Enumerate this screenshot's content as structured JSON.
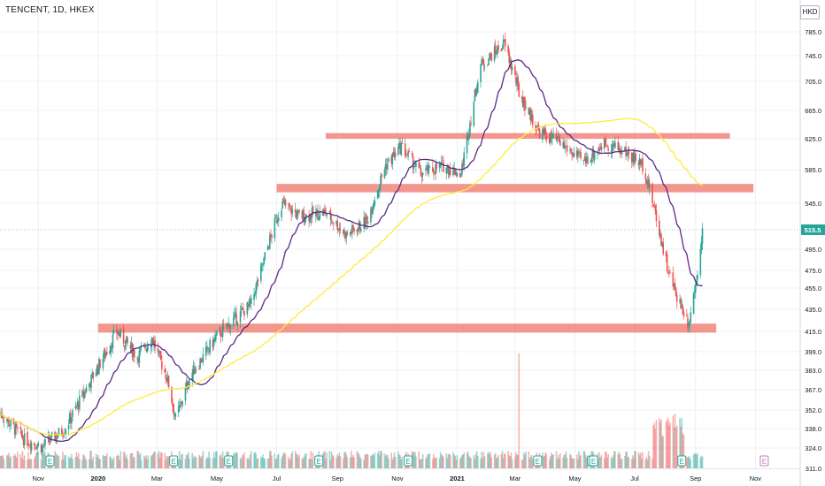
{
  "header": {
    "symbol": "TENCENT, 1D, HKEX",
    "currency": "HKD"
  },
  "chart_data": {
    "type": "candlestick",
    "title": "TENCENT, 1D, HKEX",
    "currency": "HKD",
    "last_price_label": "515.5",
    "ylim": [
      311.0,
      800.0
    ],
    "y_tick_labels": [
      "785.0",
      "745.0",
      "705.0",
      "665.0",
      "625.0",
      "585.0",
      "545.0",
      "515.5",
      "495.0",
      "475.0",
      "455.0",
      "435.0",
      "415.0",
      "399.0",
      "383.0",
      "367.0",
      "352.0",
      "338.0",
      "324.0",
      "311.0"
    ],
    "x_tick_labels": [
      "Nov",
      "2020",
      "Mar",
      "May",
      "Jul",
      "Sep",
      "Nov",
      "2021",
      "Mar",
      "May",
      "Jul",
      "Sep",
      "Nov"
    ],
    "price_anchors": [
      {
        "date": "2019-09-23",
        "price": 350
      },
      {
        "date": "2019-10-18",
        "price": 330
      },
      {
        "date": "2019-11-05",
        "price": 325
      },
      {
        "date": "2019-11-28",
        "price": 338
      },
      {
        "date": "2019-12-18",
        "price": 365
      },
      {
        "date": "2020-01-10",
        "price": 400
      },
      {
        "date": "2020-01-20",
        "price": 415
      },
      {
        "date": "2020-02-10",
        "price": 395
      },
      {
        "date": "2020-02-25",
        "price": 410
      },
      {
        "date": "2020-03-12",
        "price": 375
      },
      {
        "date": "2020-03-20",
        "price": 345
      },
      {
        "date": "2020-04-05",
        "price": 380
      },
      {
        "date": "2020-04-30",
        "price": 410
      },
      {
        "date": "2020-06-05",
        "price": 440
      },
      {
        "date": "2020-07-06",
        "price": 545
      },
      {
        "date": "2020-07-25",
        "price": 530
      },
      {
        "date": "2020-08-20",
        "price": 535
      },
      {
        "date": "2020-09-10",
        "price": 510
      },
      {
        "date": "2020-10-01",
        "price": 525
      },
      {
        "date": "2020-10-20",
        "price": 590
      },
      {
        "date": "2020-11-05",
        "price": 615
      },
      {
        "date": "2020-11-25",
        "price": 580
      },
      {
        "date": "2020-12-18",
        "price": 590
      },
      {
        "date": "2021-01-05",
        "price": 580
      },
      {
        "date": "2021-01-25",
        "price": 730
      },
      {
        "date": "2021-02-08",
        "price": 750
      },
      {
        "date": "2021-02-18",
        "price": 765
      },
      {
        "date": "2021-03-05",
        "price": 690
      },
      {
        "date": "2021-03-25",
        "price": 635
      },
      {
        "date": "2021-04-15",
        "price": 620
      },
      {
        "date": "2021-05-10",
        "price": 595
      },
      {
        "date": "2021-06-01",
        "price": 620
      },
      {
        "date": "2021-06-25",
        "price": 605
      },
      {
        "date": "2021-07-10",
        "price": 590
      },
      {
        "date": "2021-07-28",
        "price": 505
      },
      {
        "date": "2021-08-05",
        "price": 470
      },
      {
        "date": "2021-08-12",
        "price": 450
      },
      {
        "date": "2021-08-25",
        "price": 422
      },
      {
        "date": "2021-09-01",
        "price": 460
      },
      {
        "date": "2021-09-08",
        "price": 515.5
      }
    ],
    "series": [
      {
        "name": "",
        "kind": "moving-average",
        "color": "#5b2a86"
      },
      {
        "name": "",
        "kind": "moving-average",
        "color": "#ffeb3b"
      }
    ],
    "zones": [
      {
        "from_date": "2020-01-01",
        "to_date": "2021-09-22",
        "y_low": 414,
        "y_high": 422
      },
      {
        "from_date": "2020-07-01",
        "to_date": "2021-10-30",
        "y_low": 558,
        "y_high": 568
      },
      {
        "from_date": "2020-08-20",
        "to_date": "2021-10-06",
        "y_low": 625,
        "y_high": 633
      }
    ],
    "earnings_markers": [
      "2019-11-13",
      "2020-03-18",
      "2020-05-13",
      "2020-08-13",
      "2020-11-12",
      "2021-03-24",
      "2021-05-18",
      "2021-05-20",
      "2021-08-18",
      "2021-11-10"
    ],
    "volume_spike_date": "2021-03-05",
    "colors": {
      "up": "#26a69a",
      "down": "#ef5350",
      "zone": "#f28b82",
      "last_price": "#26a69a"
    },
    "grid": "on",
    "legend": "none"
  }
}
